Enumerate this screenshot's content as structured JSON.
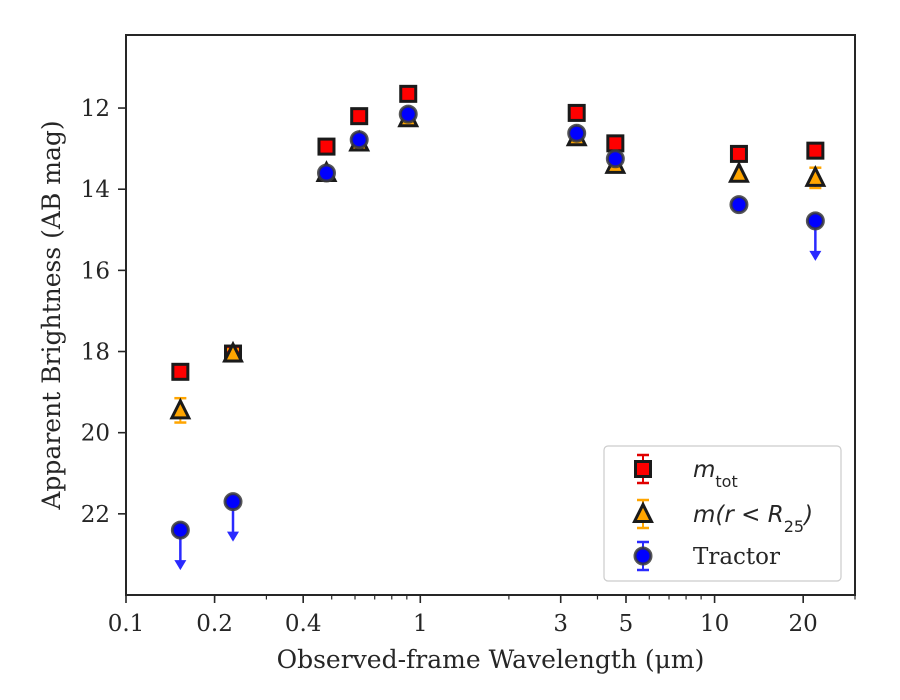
{
  "chart_data": {
    "type": "scatter",
    "title": "",
    "xlabel": "Observed-frame Wavelength (μm)",
    "ylabel": "Apparent Brightness (AB mag)",
    "x_scale": "log",
    "xlim": [
      0.1,
      30
    ],
    "ylim": [
      24.0,
      10.2
    ],
    "y_inverted": true,
    "grid": false,
    "legend_position": "lower-right",
    "x_ticks": [
      {
        "value": 0.1,
        "label": "0.1"
      },
      {
        "value": 0.2,
        "label": "0.2"
      },
      {
        "value": 0.4,
        "label": "0.4"
      },
      {
        "value": 1,
        "label": "1"
      },
      {
        "value": 3,
        "label": "3"
      },
      {
        "value": 5,
        "label": "5"
      },
      {
        "value": 10,
        "label": "10"
      },
      {
        "value": 20,
        "label": "20"
      }
    ],
    "y_ticks": [
      {
        "value": 12,
        "label": "12"
      },
      {
        "value": 14,
        "label": "14"
      },
      {
        "value": 16,
        "label": "16"
      },
      {
        "value": 18,
        "label": "18"
      },
      {
        "value": 20,
        "label": "20"
      },
      {
        "value": 22,
        "label": "22"
      }
    ],
    "series": [
      {
        "name": "m_tot",
        "legend_label": {
          "base": "m",
          "sub": "tot"
        },
        "marker": "square",
        "color": "#ff0000",
        "edge": "#1a1a1a",
        "errcolor": "#e00000",
        "points": [
          {
            "x": 0.153,
            "y": 18.5
          },
          {
            "x": 0.231,
            "y": 18.05
          },
          {
            "x": 0.48,
            "y": 12.95
          },
          {
            "x": 0.62,
            "y": 12.2
          },
          {
            "x": 0.91,
            "y": 11.65
          },
          {
            "x": 3.4,
            "y": 12.12
          },
          {
            "x": 4.6,
            "y": 12.87
          },
          {
            "x": 12.1,
            "y": 13.13
          },
          {
            "x": 22.0,
            "y": 13.05
          }
        ]
      },
      {
        "name": "m(r < R25)",
        "legend_label": {
          "base": "m(r < R",
          "sub": "25",
          "tail": ")"
        },
        "marker": "triangle",
        "color": "#ffa500",
        "edge": "#1a1a1a",
        "errcolor": "#ffa500",
        "points": [
          {
            "x": 0.153,
            "y": 19.45,
            "err": 0.3
          },
          {
            "x": 0.231,
            "y": 18.05,
            "err": 0.1
          },
          {
            "x": 0.48,
            "y": 13.6
          },
          {
            "x": 0.62,
            "y": 12.85
          },
          {
            "x": 0.91,
            "y": 12.25
          },
          {
            "x": 3.4,
            "y": 12.72
          },
          {
            "x": 4.6,
            "y": 13.4
          },
          {
            "x": 12.1,
            "y": 13.62
          },
          {
            "x": 22.0,
            "y": 13.72,
            "err": 0.25
          }
        ]
      },
      {
        "name": "Tractor",
        "legend_label": {
          "base": "Tractor"
        },
        "marker": "circle",
        "color": "#0000ff",
        "edge": "#1a1a1a",
        "errcolor": "#2a2aff",
        "points": [
          {
            "x": 0.153,
            "y": 22.4,
            "upper_limit": true
          },
          {
            "x": 0.231,
            "y": 21.7,
            "upper_limit": true
          },
          {
            "x": 0.48,
            "y": 13.6
          },
          {
            "x": 0.62,
            "y": 12.78
          },
          {
            "x": 0.91,
            "y": 12.15
          },
          {
            "x": 3.4,
            "y": 12.62
          },
          {
            "x": 4.6,
            "y": 13.25
          },
          {
            "x": 12.1,
            "y": 14.38
          },
          {
            "x": 22.0,
            "y": 14.78,
            "upper_limit": true
          }
        ]
      }
    ]
  }
}
